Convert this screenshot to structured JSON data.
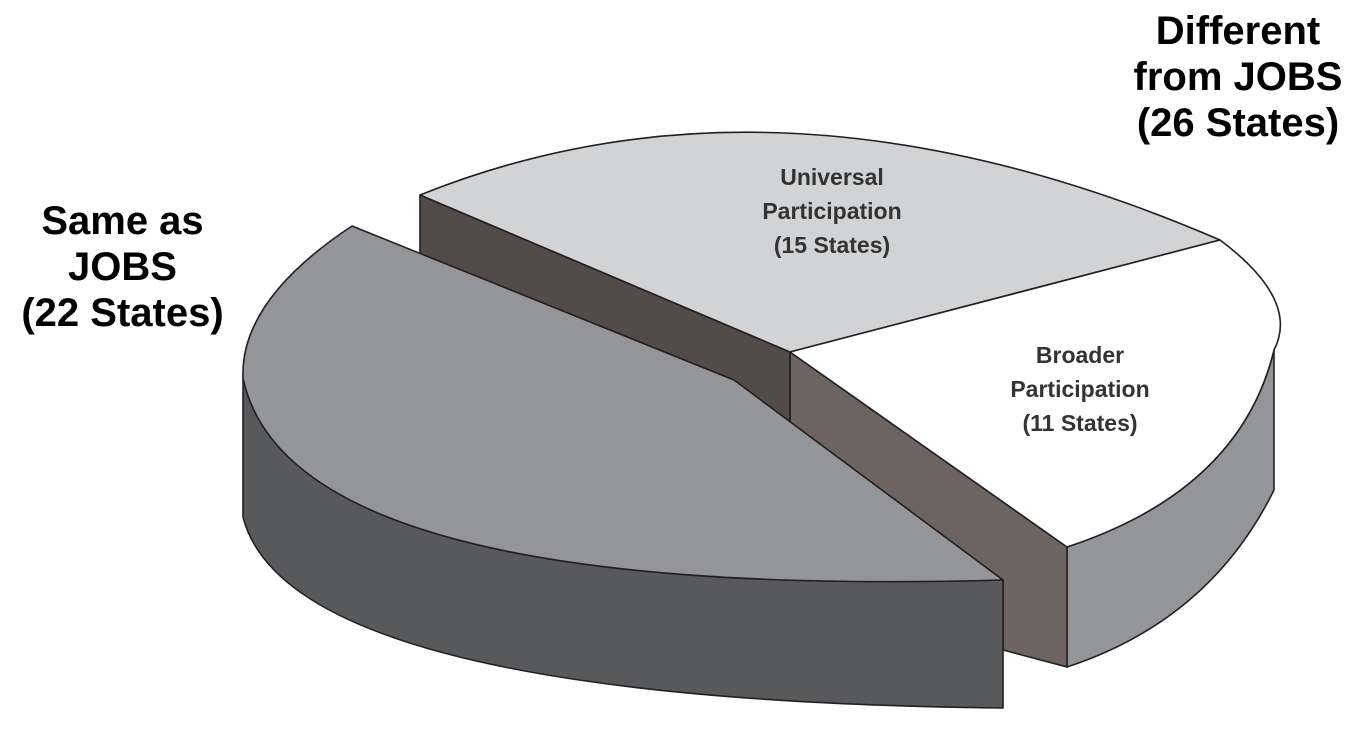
{
  "chart_data": {
    "type": "pie",
    "title": "",
    "style": "3d-exploded",
    "slices": [
      {
        "name": "Same as JOBS",
        "value": 22,
        "unit": "States",
        "label_lines": [
          "Same as",
          "JOBS",
          "(22 States)"
        ],
        "color": "#939598",
        "side_color": "#58595b"
      },
      {
        "name": "Universal Participation",
        "value": 15,
        "unit": "States",
        "label_lines": [
          "Universal",
          "Participation",
          "(15 States)"
        ],
        "color": "#d1d3d4",
        "side_color": "#524b47"
      },
      {
        "name": "Broader Participation",
        "value": 11,
        "unit": "States",
        "label_lines": [
          "Broader",
          "Participation",
          "(11 States)"
        ],
        "color": "#ffffff",
        "side_color": "#939598"
      }
    ],
    "groups": [
      {
        "name": "Different from JOBS",
        "value": 26,
        "members": [
          "Universal Participation",
          "Broader Participation"
        ],
        "label_lines": [
          "Different",
          "from JOBS",
          "(26 States)"
        ]
      }
    ],
    "inner_cut_color": "#6d6360"
  }
}
